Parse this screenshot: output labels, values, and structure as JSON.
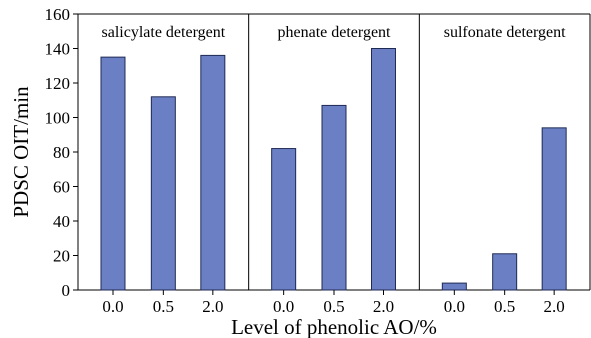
{
  "chart_data": {
    "type": "bar",
    "title": "",
    "xlabel": "Level of phenolic AO/%",
    "ylabel": "PDSC OIT/min",
    "ylim": [
      0,
      160
    ],
    "yticks": [
      0,
      20,
      40,
      60,
      80,
      100,
      120,
      140,
      160
    ],
    "grid": false,
    "bar_color": "#6b80c4",
    "groups": [
      {
        "label": "salicylate detergent",
        "categories": [
          "0.0",
          "0.5",
          "2.0"
        ],
        "values": [
          135,
          112,
          136
        ]
      },
      {
        "label": "phenate detergent",
        "categories": [
          "0.0",
          "0.5",
          "2.0"
        ],
        "values": [
          82,
          107,
          140
        ]
      },
      {
        "label": "sulfonate detergent",
        "categories": [
          "0.0",
          "0.5",
          "2.0"
        ],
        "values": [
          4,
          21,
          94
        ]
      }
    ]
  }
}
